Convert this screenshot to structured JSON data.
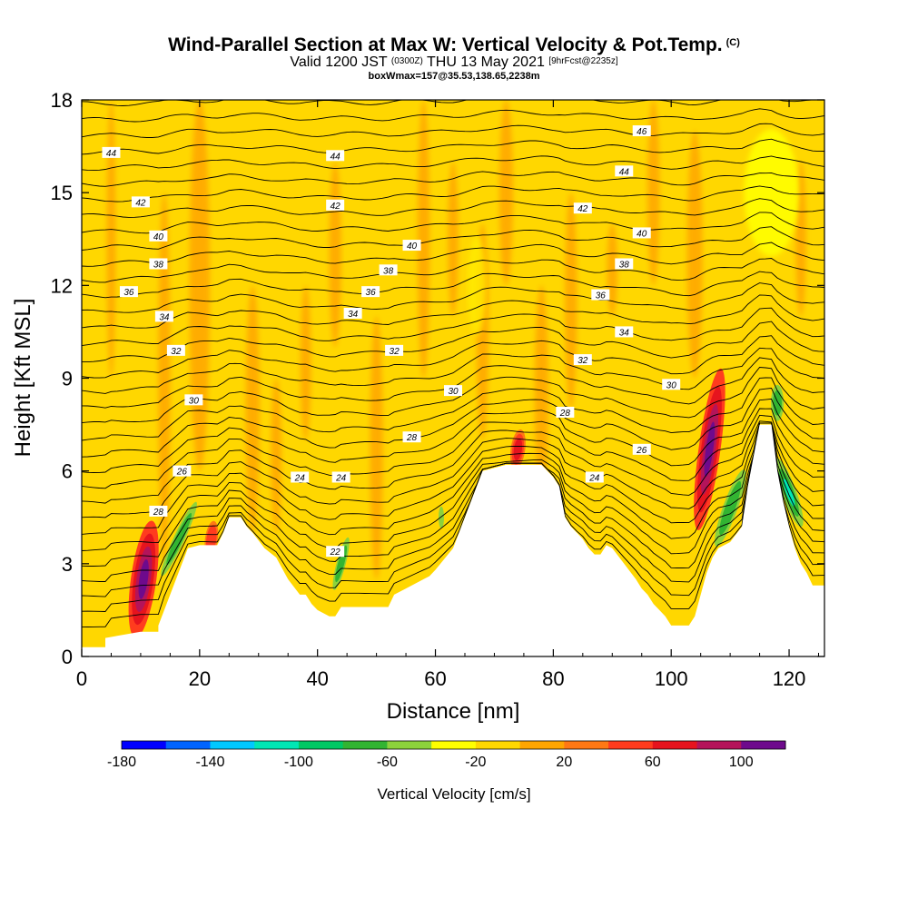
{
  "header": {
    "title": "Wind-Parallel Section at Max W: Vertical Velocity & Pot.Temp.",
    "copyright": "(C)",
    "valid_prefix": "Valid 1200 JST",
    "valid_utc": "(0300Z)",
    "valid_suffix": "THU 13 May 2021",
    "forecast": "[9hrFcst@2235z]",
    "box_info": "boxWmax=157@35.53,138.65,2238m"
  },
  "colors": {
    "background_field": "#ffd700",
    "orange": "#ffa500",
    "light_yellow": "#ffff00",
    "terrain": "#ffffff",
    "contour": "#000000"
  },
  "chart_data": {
    "type": "cross-section",
    "xlabel": "Distance [nm]",
    "ylabel": "Height [Kft MSL]",
    "xlim": [
      0,
      126
    ],
    "ylim": [
      0,
      18
    ],
    "x_ticks": [
      0,
      20,
      40,
      60,
      80,
      100,
      120
    ],
    "y_ticks": [
      0,
      3,
      6,
      9,
      12,
      15,
      18
    ],
    "terrain_profile": [
      [
        0,
        0.3
      ],
      [
        4,
        0.3
      ],
      [
        4,
        0.6
      ],
      [
        10,
        0.8
      ],
      [
        13,
        0.8
      ],
      [
        13,
        1.0
      ],
      [
        14,
        1.5
      ],
      [
        15,
        2.0
      ],
      [
        16,
        2.5
      ],
      [
        17,
        3.0
      ],
      [
        18,
        3.5
      ],
      [
        20,
        3.6
      ],
      [
        23,
        3.6
      ],
      [
        24,
        4.0
      ],
      [
        25,
        4.5
      ],
      [
        27,
        4.5
      ],
      [
        28,
        4.2
      ],
      [
        29,
        4.0
      ],
      [
        31,
        3.5
      ],
      [
        33,
        3.2
      ],
      [
        35,
        2.5
      ],
      [
        37,
        2.0
      ],
      [
        38,
        2.0
      ],
      [
        39,
        1.7
      ],
      [
        40,
        1.5
      ],
      [
        42,
        1.3
      ],
      [
        43,
        1.3
      ],
      [
        44,
        1.6
      ],
      [
        48,
        1.6
      ],
      [
        52,
        1.6
      ],
      [
        53,
        2.0
      ],
      [
        55,
        2.2
      ],
      [
        58,
        2.5
      ],
      [
        59,
        2.6
      ],
      [
        60,
        2.8
      ],
      [
        63,
        3.5
      ],
      [
        65,
        4.5
      ],
      [
        67,
        5.5
      ],
      [
        68,
        6.0
      ],
      [
        72,
        6.2
      ],
      [
        78,
        6.2
      ],
      [
        80,
        5.8
      ],
      [
        81,
        5.5
      ],
      [
        82,
        4.5
      ],
      [
        83,
        4.2
      ],
      [
        84,
        4.0
      ],
      [
        85,
        3.8
      ],
      [
        86,
        3.5
      ],
      [
        87,
        3.3
      ],
      [
        88,
        3.3
      ],
      [
        89,
        3.6
      ],
      [
        90,
        3.5
      ],
      [
        92,
        3.0
      ],
      [
        94,
        2.5
      ],
      [
        95,
        2.2
      ],
      [
        96,
        2.0
      ],
      [
        97,
        1.7
      ],
      [
        98,
        1.5
      ],
      [
        99,
        1.3
      ],
      [
        100,
        1.0
      ],
      [
        103,
        1.0
      ],
      [
        104,
        1.3
      ],
      [
        105,
        2.0
      ],
      [
        106,
        2.7
      ],
      [
        107,
        3.2
      ],
      [
        108,
        3.5
      ],
      [
        110,
        3.7
      ],
      [
        112,
        4.2
      ],
      [
        113,
        5.5
      ],
      [
        114,
        6.5
      ],
      [
        115,
        7.5
      ],
      [
        117,
        7.5
      ],
      [
        118,
        6.0
      ],
      [
        119,
        5.0
      ],
      [
        120,
        4.2
      ],
      [
        121,
        3.5
      ],
      [
        122,
        3.0
      ],
      [
        123,
        2.7
      ],
      [
        124,
        2.3
      ],
      [
        126,
        2.3
      ]
    ],
    "isentrope_labels": [
      {
        "x": 5,
        "y": 16.3,
        "text": "44"
      },
      {
        "x": 43,
        "y": 16.2,
        "text": "44"
      },
      {
        "x": 92,
        "y": 15.7,
        "text": "44"
      },
      {
        "x": 95,
        "y": 17.0,
        "text": "46"
      },
      {
        "x": 10,
        "y": 14.7,
        "text": "42"
      },
      {
        "x": 43,
        "y": 14.6,
        "text": "42"
      },
      {
        "x": 85,
        "y": 14.5,
        "text": "42"
      },
      {
        "x": 13,
        "y": 13.6,
        "text": "40"
      },
      {
        "x": 56,
        "y": 13.3,
        "text": "40"
      },
      {
        "x": 95,
        "y": 13.7,
        "text": "40"
      },
      {
        "x": 13,
        "y": 12.7,
        "text": "38"
      },
      {
        "x": 52,
        "y": 12.5,
        "text": "38"
      },
      {
        "x": 92,
        "y": 12.7,
        "text": "38"
      },
      {
        "x": 8,
        "y": 11.8,
        "text": "36"
      },
      {
        "x": 49,
        "y": 11.8,
        "text": "36"
      },
      {
        "x": 88,
        "y": 11.7,
        "text": "36"
      },
      {
        "x": 14,
        "y": 11.0,
        "text": "34"
      },
      {
        "x": 46,
        "y": 11.1,
        "text": "34"
      },
      {
        "x": 92,
        "y": 10.5,
        "text": "34"
      },
      {
        "x": 16,
        "y": 9.9,
        "text": "32"
      },
      {
        "x": 53,
        "y": 9.9,
        "text": "32"
      },
      {
        "x": 85,
        "y": 9.6,
        "text": "32"
      },
      {
        "x": 19,
        "y": 8.3,
        "text": "30"
      },
      {
        "x": 63,
        "y": 8.6,
        "text": "30"
      },
      {
        "x": 100,
        "y": 8.8,
        "text": "30"
      },
      {
        "x": 56,
        "y": 7.1,
        "text": "28"
      },
      {
        "x": 82,
        "y": 7.9,
        "text": "28"
      },
      {
        "x": 95,
        "y": 6.7,
        "text": "26"
      },
      {
        "x": 17,
        "y": 6.0,
        "text": "26"
      },
      {
        "x": 37,
        "y": 5.8,
        "text": "24"
      },
      {
        "x": 44,
        "y": 5.8,
        "text": "24"
      },
      {
        "x": 87,
        "y": 5.8,
        "text": "24"
      },
      {
        "x": 13,
        "y": 4.7,
        "text": "28"
      },
      {
        "x": 43,
        "y": 3.4,
        "text": "22"
      }
    ],
    "colorbar": {
      "title": "Vertical Velocity [cm/s]",
      "tick_labels": [
        "-180",
        "-140",
        "-100",
        "-60",
        "-20",
        "20",
        "60",
        "100"
      ],
      "colors": [
        "#0000ff",
        "#0064ff",
        "#00c8ff",
        "#00e6b4",
        "#00c864",
        "#32b432",
        "#8cd23c",
        "#ffff00",
        "#ffd700",
        "#ffa500",
        "#ff7814",
        "#ff3c1e",
        "#e6141e",
        "#b4145a",
        "#6e0a8c"
      ]
    }
  }
}
